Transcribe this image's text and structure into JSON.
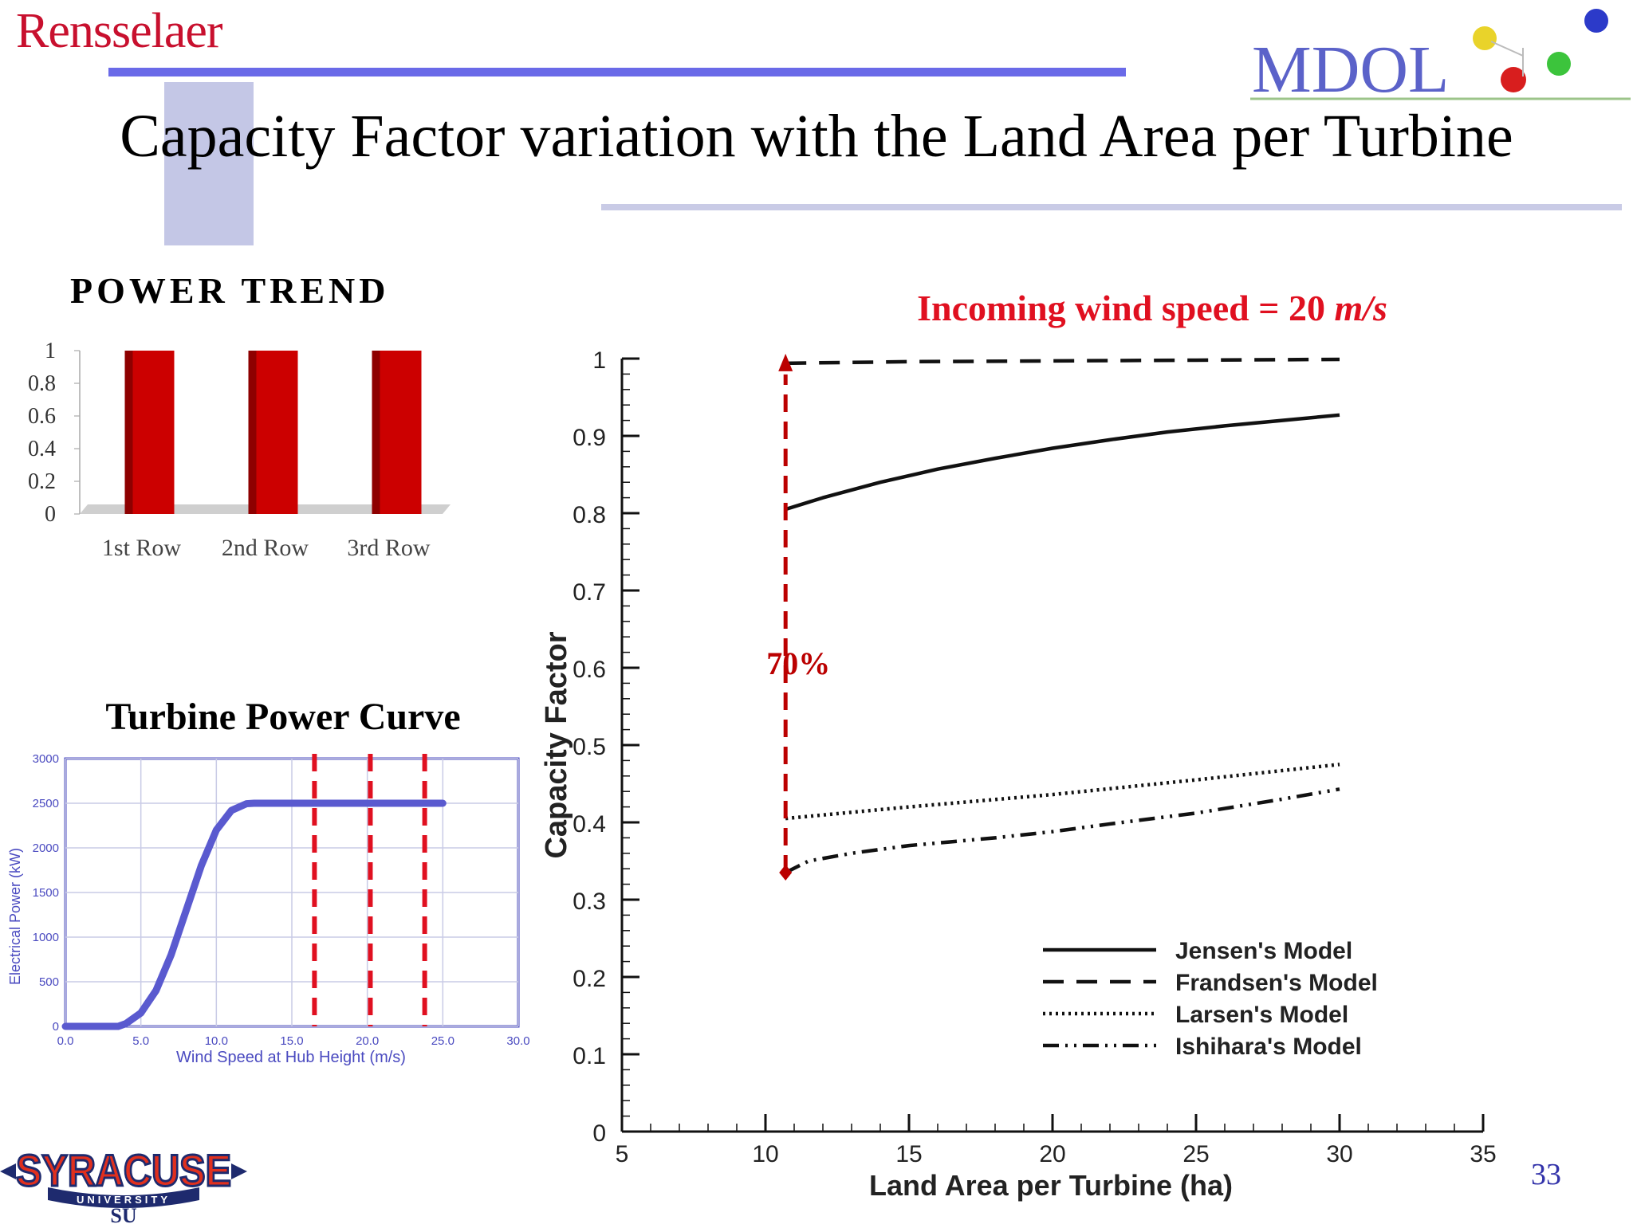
{
  "header": {
    "left_logo_text": "Rensselaer",
    "right_logo_text": "MDOL",
    "title": "Capacity Factor variation with the Land Area per Turbine",
    "page_number": "33",
    "footer_logo": {
      "line1": "SYRACUSE",
      "line2": "UNIVERSITY",
      "monogram": "SU"
    }
  },
  "colors": {
    "rpi_red": "#c8102e",
    "rule_blue": "#6a6ae8",
    "bar_red": "#cc0000",
    "curve_blue": "#5a5acf",
    "marker_red": "#e01020",
    "annotation_red": "#bb0000"
  },
  "annotation": {
    "wind_speed_prefix": "Incoming wind speed = ",
    "wind_speed_value": "20",
    "wind_speed_unit": "m/s",
    "deficit_label": "70%"
  },
  "chart_data": [
    {
      "id": "power-trend",
      "type": "bar",
      "title": "POWER TREND",
      "categories": [
        "1st Row",
        "2nd Row",
        "3rd Row"
      ],
      "values": [
        1,
        1,
        1
      ],
      "ylim": [
        0,
        1
      ],
      "yticks": [
        "0",
        "0.2",
        "0.4",
        "0.6",
        "0.8",
        "1"
      ]
    },
    {
      "id": "turbine-power-curve",
      "type": "line",
      "title": "Turbine Power Curve",
      "xlabel": "Wind Speed at Hub Height (m/s)",
      "ylabel": "Electrical Power (kW)",
      "xlim": [
        0,
        30
      ],
      "ylim": [
        0,
        3000
      ],
      "xticks": [
        "0.0",
        "5.0",
        "10.0",
        "15.0",
        "20.0",
        "25.0",
        "30.0"
      ],
      "yticks": [
        "0",
        "500",
        "1000",
        "1500",
        "2000",
        "2500",
        "3000"
      ],
      "series": [
        {
          "x": [
            0,
            3.5,
            4,
            5,
            6,
            7,
            8,
            9,
            10,
            11,
            12,
            12.5,
            13,
            25
          ],
          "y": [
            0,
            0,
            30,
            150,
            400,
            800,
            1300,
            1800,
            2200,
            2420,
            2495,
            2500,
            2500,
            2500
          ]
        }
      ],
      "reference_lines_x": [
        16.5,
        20.2,
        23.8
      ]
    },
    {
      "id": "capacity-factor",
      "type": "line",
      "xlabel": "Land Area per Turbine (ha)",
      "ylabel": "Capacity Factor",
      "xlim": [
        5,
        35
      ],
      "ylim": [
        0,
        1
      ],
      "xticks": [
        "5",
        "10",
        "15",
        "20",
        "25",
        "30",
        "35"
      ],
      "yticks": [
        "0",
        "0.1",
        "0.2",
        "0.3",
        "0.4",
        "0.5",
        "0.6",
        "0.7",
        "0.8",
        "0.9",
        "1"
      ],
      "legend": "bottom-right",
      "series": [
        {
          "name": "Jensen's Model",
          "dash": "solid",
          "x": [
            10.7,
            12,
            14,
            16,
            18,
            20,
            22,
            24,
            26,
            28,
            30
          ],
          "y": [
            0.805,
            0.82,
            0.84,
            0.857,
            0.871,
            0.884,
            0.895,
            0.905,
            0.913,
            0.92,
            0.927
          ]
        },
        {
          "name": "Frandsen's Model",
          "dash": "dashed",
          "x": [
            10.7,
            15,
            20,
            25,
            30
          ],
          "y": [
            0.994,
            0.996,
            0.997,
            0.998,
            0.999
          ]
        },
        {
          "name": "Larsen's Model",
          "dash": "dotted",
          "x": [
            10.7,
            15,
            20,
            25,
            30
          ],
          "y": [
            0.405,
            0.42,
            0.436,
            0.455,
            0.475
          ]
        },
        {
          "name": "Ishihara's Model",
          "dash": "dashdot",
          "x": [
            10.7,
            11.5,
            13,
            15,
            18,
            20,
            22,
            25,
            28,
            30
          ],
          "y": [
            0.335,
            0.35,
            0.36,
            0.37,
            0.38,
            0.388,
            0.398,
            0.412,
            0.43,
            0.443
          ]
        }
      ],
      "annotation_arrow": {
        "x": 10.7,
        "y_from": 0.335,
        "y_to": 0.994
      }
    }
  ]
}
